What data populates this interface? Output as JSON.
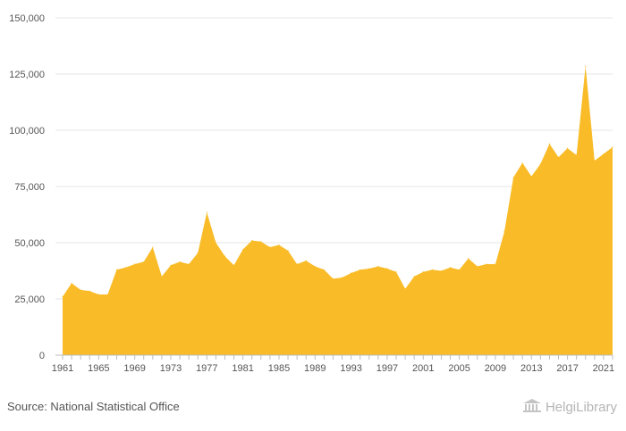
{
  "chart_data": {
    "type": "area",
    "title": "",
    "xlabel": "",
    "ylabel": "",
    "ylim": [
      0,
      150000
    ],
    "yticks": [
      "0",
      "25,000",
      "50,000",
      "75,000",
      "100,000",
      "125,000",
      "150,000"
    ],
    "xtick_labels": [
      "1961",
      "1965",
      "1969",
      "1973",
      "1977",
      "1981",
      "1985",
      "1989",
      "1993",
      "1997",
      "2001",
      "2005",
      "2009",
      "2013",
      "2017",
      "2021"
    ],
    "grid": true,
    "legend": "none",
    "color": "#f9bc28",
    "series": [
      {
        "x": [
          1961,
          1962,
          1963,
          1964,
          1965,
          1966,
          1967,
          1968,
          1969,
          1970,
          1971,
          1972,
          1973,
          1974,
          1975,
          1976,
          1977,
          1978,
          1979,
          1980,
          1981,
          1982,
          1983,
          1984,
          1985,
          1986,
          1987,
          1988,
          1989,
          1990,
          1991,
          1992,
          1993,
          1994,
          1995,
          1996,
          1997,
          1998,
          1999,
          2000,
          2001,
          2002,
          2003,
          2004,
          2005,
          2006,
          2007,
          2008,
          2009,
          2010,
          2011,
          2012,
          2013,
          2014,
          2015,
          2016,
          2017,
          2018,
          2019,
          2020,
          2021,
          2022
        ],
        "values": [
          26000,
          32000,
          29000,
          28500,
          27000,
          27000,
          38000,
          39000,
          40500,
          41500,
          48000,
          35000,
          40000,
          41500,
          40500,
          45500,
          63500,
          50000,
          44000,
          40000,
          47000,
          51000,
          50500,
          48000,
          49000,
          46500,
          40500,
          42000,
          39500,
          38000,
          34000,
          34500,
          36500,
          38000,
          38500,
          39500,
          38500,
          37000,
          29500,
          35000,
          37000,
          38000,
          37500,
          39000,
          38000,
          43000,
          39500,
          40500,
          40500,
          55000,
          79000,
          85500,
          79500,
          85000,
          94000,
          88000,
          92000,
          89000,
          128500,
          86500,
          89500,
          92500
        ]
      }
    ]
  },
  "footer": {
    "source": "Source: National Statistical Office",
    "brand": "HelgiLibrary"
  }
}
